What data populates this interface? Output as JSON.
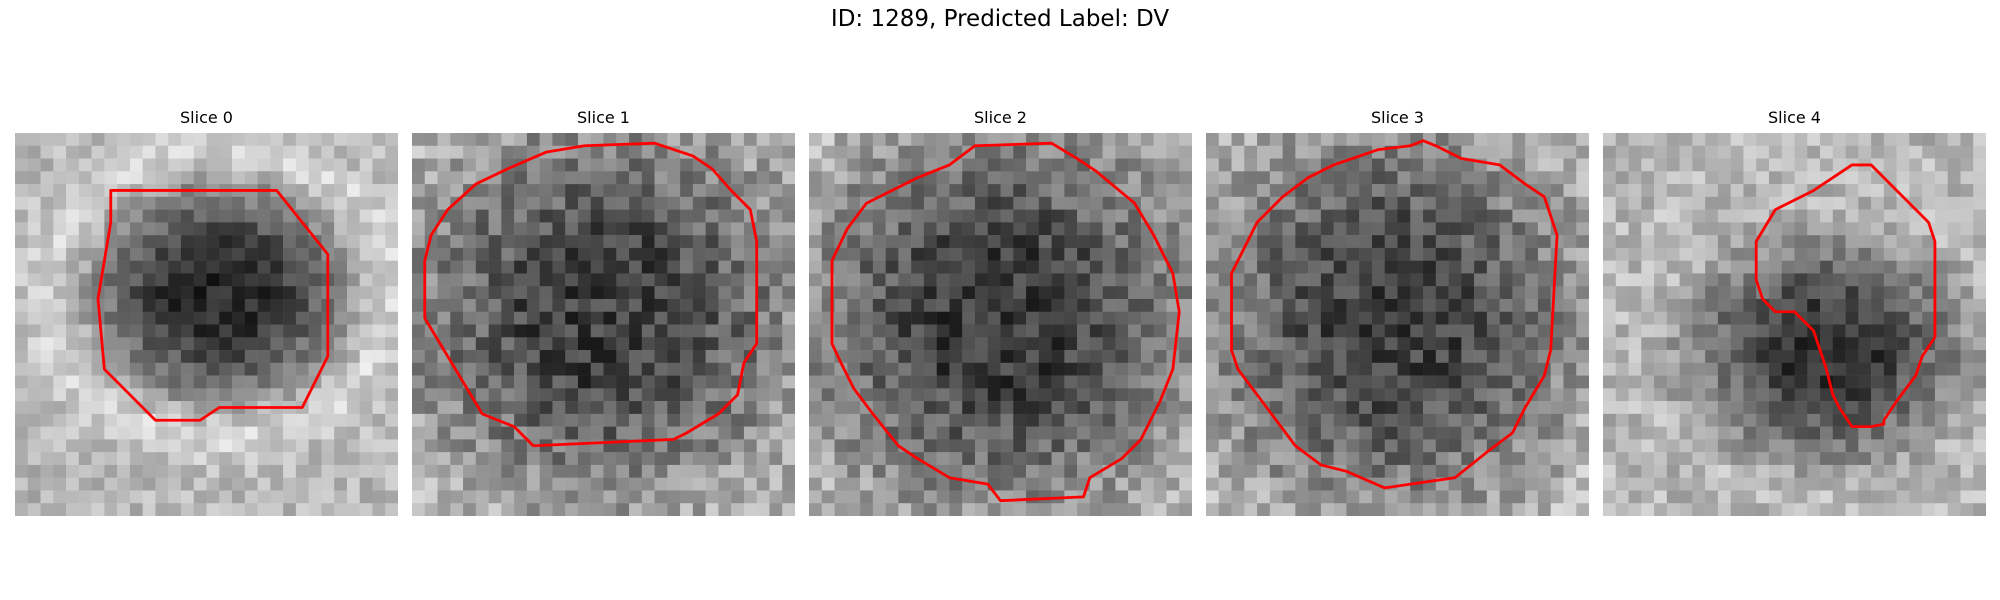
{
  "figure": {
    "title": "ID: 1289, Predicted Label: DV"
  },
  "panels": [
    {
      "title": "Slice 0",
      "seed": 11,
      "image": {
        "blob_center": [
          16,
          12.5
        ],
        "blob_radius": [
          9.5,
          8
        ],
        "blob_darkness": 0.55,
        "background_brightness": 0.72,
        "noise": 0.22,
        "bright_ring": true
      },
      "contour": [
        [
          7.5,
          4.5
        ],
        [
          20.5,
          4.5
        ],
        [
          24.5,
          9.5
        ],
        [
          24.5,
          17.5
        ],
        [
          22.5,
          21.5
        ],
        [
          16,
          21.5
        ],
        [
          14.5,
          22.5
        ],
        [
          11,
          22.5
        ],
        [
          9.5,
          21
        ],
        [
          7,
          18.5
        ],
        [
          6.5,
          13
        ],
        [
          7.5,
          7
        ]
      ]
    },
    {
      "title": "Slice 1",
      "seed": 23,
      "image": {
        "blob_center": [
          15,
          14
        ],
        "blob_radius": [
          14,
          13
        ],
        "blob_darkness": 0.45,
        "background_brightness": 0.7,
        "noise": 0.32,
        "bright_ring": false
      },
      "contour": [
        [
          10.5,
          1.5
        ],
        [
          13.5,
          1
        ],
        [
          19,
          0.8
        ],
        [
          22,
          1.8
        ],
        [
          23.5,
          2.8
        ],
        [
          25,
          4.5
        ],
        [
          26.5,
          6
        ],
        [
          27,
          8.5
        ],
        [
          27,
          16.5
        ],
        [
          26,
          18
        ],
        [
          25.5,
          20.5
        ],
        [
          24,
          22
        ],
        [
          21.5,
          23.5
        ],
        [
          20.5,
          24
        ],
        [
          9.5,
          24.5
        ],
        [
          8,
          23
        ],
        [
          5.5,
          22
        ],
        [
          4,
          19.5
        ],
        [
          2.5,
          17
        ],
        [
          1,
          14.5
        ],
        [
          1,
          10
        ],
        [
          1.5,
          8
        ],
        [
          2.8,
          6
        ],
        [
          5,
          4
        ],
        [
          7.5,
          2.8
        ]
      ]
    },
    {
      "title": "Slice 2",
      "seed": 37,
      "image": {
        "blob_center": [
          15,
          14.5
        ],
        "blob_radius": [
          14.5,
          14
        ],
        "blob_darkness": 0.48,
        "background_brightness": 0.72,
        "noise": 0.3,
        "bright_ring": false
      },
      "contour": [
        [
          8.5,
          3.5
        ],
        [
          11,
          2.5
        ],
        [
          13,
          1
        ],
        [
          19,
          0.8
        ],
        [
          21,
          2
        ],
        [
          22.5,
          3
        ],
        [
          25.5,
          5.5
        ],
        [
          27,
          8
        ],
        [
          28.5,
          11
        ],
        [
          29,
          14
        ],
        [
          28.5,
          18.5
        ],
        [
          27.5,
          21
        ],
        [
          26,
          24
        ],
        [
          24.5,
          25.5
        ],
        [
          22,
          27
        ],
        [
          21.5,
          28.5
        ],
        [
          15,
          28.8
        ],
        [
          14,
          27.5
        ],
        [
          11,
          27
        ],
        [
          8.5,
          25.5
        ],
        [
          7,
          24.5
        ],
        [
          5,
          22
        ],
        [
          3.5,
          20
        ],
        [
          2.5,
          18
        ],
        [
          1.8,
          16.5
        ],
        [
          1.8,
          10
        ],
        [
          3,
          7.5
        ],
        [
          4.5,
          5.5
        ],
        [
          6.5,
          4.5
        ]
      ]
    },
    {
      "title": "Slice 3",
      "seed": 53,
      "image": {
        "blob_center": [
          14.5,
          14.5
        ],
        "blob_radius": [
          13.5,
          14
        ],
        "blob_darkness": 0.46,
        "background_brightness": 0.72,
        "noise": 0.3,
        "bright_ring": false
      },
      "contour": [
        [
          10,
          2.5
        ],
        [
          13.5,
          1.3
        ],
        [
          16,
          1
        ],
        [
          17,
          0.6
        ],
        [
          18,
          1
        ],
        [
          20,
          2
        ],
        [
          23,
          2.5
        ],
        [
          25,
          4
        ],
        [
          26.5,
          5
        ],
        [
          27.5,
          8
        ],
        [
          27,
          17
        ],
        [
          26.5,
          19
        ],
        [
          25,
          21.5
        ],
        [
          24,
          23.5
        ],
        [
          22,
          25
        ],
        [
          19.5,
          27
        ],
        [
          14,
          27.8
        ],
        [
          11,
          26.5
        ],
        [
          9,
          26
        ],
        [
          7,
          24.5
        ],
        [
          5.5,
          22.5
        ],
        [
          4,
          20.5
        ],
        [
          2.5,
          18.5
        ],
        [
          2,
          17
        ],
        [
          2,
          11
        ],
        [
          2.5,
          10
        ],
        [
          4,
          7
        ],
        [
          6,
          5
        ],
        [
          8,
          3.5
        ]
      ]
    },
    {
      "title": "Slice 4",
      "seed": 71,
      "image": {
        "blob_center": [
          17.5,
          17
        ],
        "blob_radius": [
          10,
          8
        ],
        "blob_darkness": 0.5,
        "background_brightness": 0.72,
        "noise": 0.26,
        "bright_ring": false
      },
      "contour": [
        [
          19.5,
          2.5
        ],
        [
          21,
          2.5
        ],
        [
          23,
          4.5
        ],
        [
          25.5,
          7
        ],
        [
          26,
          8.5
        ],
        [
          26,
          16
        ],
        [
          25,
          17.5
        ],
        [
          24.5,
          19
        ],
        [
          23,
          21
        ],
        [
          22,
          22.5
        ],
        [
          22,
          22.8
        ],
        [
          21,
          23
        ],
        [
          19.5,
          23
        ],
        [
          18.5,
          21.5
        ],
        [
          18,
          20.5
        ],
        [
          17.5,
          18.5
        ],
        [
          17,
          17
        ],
        [
          16.5,
          15.5
        ],
        [
          15,
          14
        ],
        [
          13.5,
          14
        ],
        [
          12.5,
          13
        ],
        [
          12,
          11.5
        ],
        [
          12,
          8.5
        ],
        [
          13.5,
          6
        ],
        [
          15.5,
          5
        ],
        [
          16.5,
          4.5
        ],
        [
          18,
          3.5
        ]
      ]
    }
  ],
  "colors": {
    "contour": "#ff0000"
  }
}
